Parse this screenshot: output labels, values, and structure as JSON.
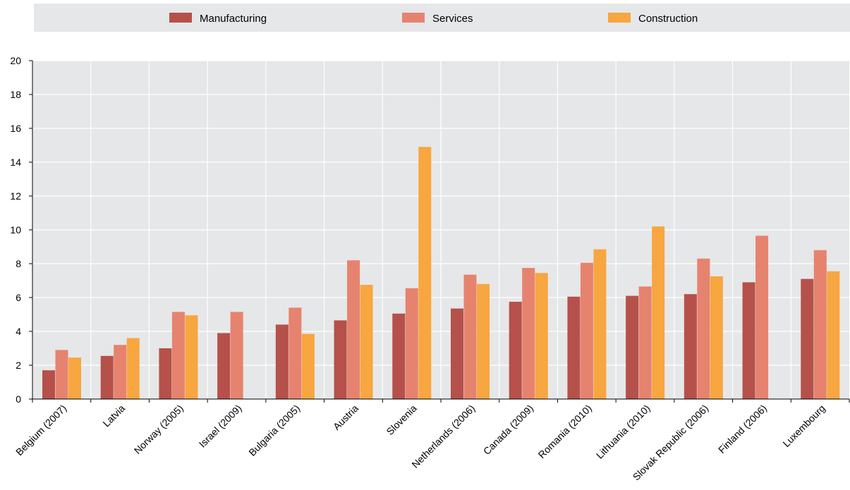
{
  "chart_data": {
    "type": "bar",
    "categories": [
      "Belgium (2007)",
      "Latvia",
      "Norway (2005)",
      "Israel (2009)",
      "Bulgaria (2005)",
      "Austria",
      "Slovenia",
      "Netherlands (2006)",
      "Canada (2009)",
      "Romania (2010)",
      "Lithuania (2010)",
      "Slovak Republic (2006)",
      "Finland (2006)",
      "Luxembourg"
    ],
    "series": [
      {
        "name": "Manufacturing",
        "color": "#b5514a",
        "values": [
          1.7,
          2.55,
          3.0,
          3.9,
          4.4,
          4.65,
          5.05,
          5.35,
          5.75,
          6.05,
          6.1,
          6.2,
          6.9,
          7.1
        ]
      },
      {
        "name": "Services",
        "color": "#e6836e",
        "values": [
          2.9,
          3.2,
          5.15,
          5.15,
          5.4,
          8.2,
          6.55,
          7.35,
          7.75,
          8.05,
          6.65,
          8.3,
          9.65,
          8.8
        ]
      },
      {
        "name": "Construction",
        "color": "#f7a640",
        "values": [
          2.45,
          3.6,
          4.95,
          null,
          3.85,
          6.75,
          14.9,
          6.8,
          7.45,
          8.85,
          10.2,
          7.25,
          null,
          7.55
        ]
      }
    ],
    "y_ticks": [
      0,
      2,
      4,
      6,
      8,
      10,
      12,
      14,
      16,
      18,
      20
    ],
    "ylim": [
      0,
      20
    ],
    "grid": true,
    "legend_position": "top",
    "plot_background": "#e6e7e8",
    "legend_background": "#e6e7e8",
    "gridline_color": "#ffffff"
  }
}
